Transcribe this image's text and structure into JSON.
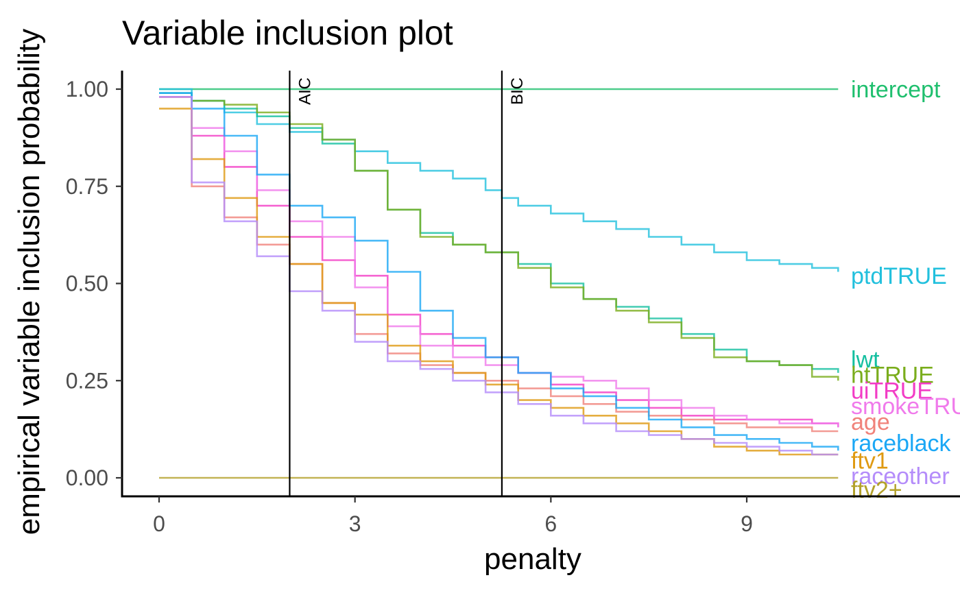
{
  "chart_data": {
    "type": "line",
    "title": "Variable inclusion plot",
    "xlabel": "penalty",
    "ylabel": "empirical variable inclusion probability",
    "xlim": [
      -0.55,
      11.95
    ],
    "ylim": [
      -0.05,
      1.05
    ],
    "x_ticks": [
      0,
      3,
      6,
      9
    ],
    "x_tick_labels": [
      "0",
      "3",
      "6",
      "9"
    ],
    "y_ticks": [
      0,
      0.25,
      0.5,
      0.75,
      1.0
    ],
    "y_tick_labels": [
      "0.00",
      "0.25",
      "0.50",
      "0.75",
      "1.00"
    ],
    "grid": false,
    "legend": "direct labels at right end of lines",
    "vlines": [
      {
        "x": 2.0,
        "label": "AIC"
      },
      {
        "x": 5.25,
        "label": "BIC"
      }
    ],
    "series": [
      {
        "name": "intercept",
        "color": "#1fbf6e",
        "x": [
          0,
          10.4
        ],
        "y": [
          1.0,
          1.0
        ],
        "label_y": 1.0
      },
      {
        "name": "ptdTRUE",
        "color": "#22c0dd",
        "x": [
          0,
          0.5,
          1.0,
          1.5,
          2.0,
          2.5,
          3.0,
          3.5,
          4.0,
          4.5,
          5.0,
          5.25,
          5.5,
          6.0,
          6.5,
          7.0,
          7.5,
          8.0,
          8.5,
          9.0,
          9.5,
          10.0,
          10.4
        ],
        "y": [
          1.0,
          0.97,
          0.94,
          0.91,
          0.89,
          0.87,
          0.84,
          0.81,
          0.79,
          0.77,
          0.74,
          0.72,
          0.7,
          0.68,
          0.66,
          0.64,
          0.62,
          0.6,
          0.58,
          0.56,
          0.55,
          0.54,
          0.53
        ],
        "label_y": 0.52
      },
      {
        "name": "lwt",
        "color": "#14bfa0",
        "x": [
          0,
          0.5,
          1.0,
          1.5,
          2.0,
          2.5,
          3.0,
          3.5,
          4.0,
          4.5,
          5.0,
          5.5,
          6.0,
          6.5,
          7.0,
          7.5,
          8.0,
          8.5,
          9.0,
          9.5,
          10.0,
          10.4
        ],
        "y": [
          0.99,
          0.97,
          0.95,
          0.93,
          0.9,
          0.86,
          0.79,
          0.69,
          0.63,
          0.6,
          0.58,
          0.55,
          0.5,
          0.46,
          0.44,
          0.41,
          0.37,
          0.33,
          0.3,
          0.29,
          0.28,
          0.27
        ],
        "label_y": 0.305
      },
      {
        "name": "htTRUE",
        "color": "#7aad1c",
        "x": [
          0,
          0.5,
          1.0,
          1.5,
          2.0,
          2.5,
          3.0,
          3.5,
          4.0,
          4.5,
          5.0,
          5.5,
          6.0,
          6.5,
          7.0,
          7.5,
          8.0,
          8.5,
          9.0,
          9.5,
          10.0,
          10.4
        ],
        "y": [
          0.98,
          0.97,
          0.96,
          0.94,
          0.91,
          0.87,
          0.79,
          0.69,
          0.62,
          0.6,
          0.58,
          0.54,
          0.49,
          0.46,
          0.43,
          0.4,
          0.36,
          0.31,
          0.3,
          0.29,
          0.26,
          0.25
        ],
        "label_y": 0.265
      },
      {
        "name": "uiTRUE",
        "color": "#f23cc5",
        "x": [
          0,
          0.5,
          1.0,
          1.5,
          2.0,
          2.5,
          3.0,
          3.5,
          4.0,
          4.5,
          5.0,
          5.5,
          6.0,
          6.5,
          7.0,
          7.5,
          8.0,
          8.5,
          9.0,
          9.5,
          10.0,
          10.4
        ],
        "y": [
          0.98,
          0.88,
          0.8,
          0.7,
          0.62,
          0.56,
          0.52,
          0.42,
          0.37,
          0.34,
          0.31,
          0.27,
          0.24,
          0.22,
          0.2,
          0.18,
          0.16,
          0.15,
          0.15,
          0.15,
          0.14,
          0.13
        ],
        "label_y": 0.225
      },
      {
        "name": "smokeTRUE",
        "color": "#f07aeb",
        "x": [
          0,
          0.5,
          1.0,
          1.5,
          2.0,
          2.5,
          3.0,
          3.5,
          4.0,
          4.5,
          5.0,
          5.5,
          6.0,
          6.5,
          7.0,
          7.5,
          8.0,
          8.5,
          9.0,
          9.5,
          10.0,
          10.4
        ],
        "y": [
          0.98,
          0.9,
          0.84,
          0.74,
          0.66,
          0.62,
          0.49,
          0.39,
          0.34,
          0.31,
          0.29,
          0.27,
          0.26,
          0.25,
          0.23,
          0.2,
          0.18,
          0.16,
          0.15,
          0.14,
          0.14,
          0.13
        ],
        "label_y": 0.185
      },
      {
        "name": "age",
        "color": "#f0827a",
        "x": [
          0,
          0.5,
          1.0,
          1.5,
          2.0,
          2.5,
          3.0,
          3.5,
          4.0,
          4.5,
          5.0,
          5.5,
          6.0,
          6.5,
          7.0,
          7.5,
          8.0,
          8.5,
          9.0,
          9.5,
          10.0,
          10.4
        ],
        "y": [
          0.98,
          0.75,
          0.67,
          0.6,
          0.55,
          0.45,
          0.37,
          0.32,
          0.29,
          0.27,
          0.25,
          0.23,
          0.21,
          0.19,
          0.17,
          0.16,
          0.15,
          0.14,
          0.13,
          0.13,
          0.12,
          0.12
        ],
        "label_y": 0.145
      },
      {
        "name": "raceblack",
        "color": "#1aa7f5",
        "x": [
          0,
          0.5,
          1.0,
          1.5,
          2.0,
          2.5,
          3.0,
          3.5,
          4.0,
          4.5,
          5.0,
          5.5,
          6.0,
          6.5,
          7.0,
          7.5,
          8.0,
          8.5,
          9.0,
          9.5,
          10.0,
          10.4
        ],
        "y": [
          0.99,
          0.95,
          0.88,
          0.78,
          0.7,
          0.67,
          0.61,
          0.53,
          0.43,
          0.36,
          0.31,
          0.27,
          0.23,
          0.21,
          0.18,
          0.15,
          0.13,
          0.11,
          0.1,
          0.09,
          0.08,
          0.07
        ],
        "label_y": 0.09
      },
      {
        "name": "ftv1",
        "color": "#df9a12",
        "x": [
          0,
          0.5,
          1.0,
          1.5,
          2.0,
          2.5,
          3.0,
          3.5,
          4.0,
          4.5,
          5.0,
          5.5,
          6.0,
          6.5,
          7.0,
          7.5,
          8.0,
          8.5,
          9.0,
          9.5,
          10.0,
          10.4
        ],
        "y": [
          0.95,
          0.82,
          0.72,
          0.62,
          0.55,
          0.45,
          0.42,
          0.34,
          0.3,
          0.27,
          0.24,
          0.2,
          0.18,
          0.16,
          0.14,
          0.12,
          0.1,
          0.08,
          0.07,
          0.06,
          0.06,
          0.06
        ],
        "label_y": 0.045
      },
      {
        "name": "raceother",
        "color": "#b48cfa",
        "x": [
          0,
          0.5,
          1.0,
          1.5,
          2.0,
          2.5,
          3.0,
          3.5,
          4.0,
          4.5,
          5.0,
          5.5,
          6.0,
          6.5,
          7.0,
          7.5,
          8.0,
          8.5,
          9.0,
          9.5,
          10.0,
          10.4
        ],
        "y": [
          0.98,
          0.76,
          0.66,
          0.57,
          0.48,
          0.43,
          0.35,
          0.3,
          0.28,
          0.25,
          0.22,
          0.19,
          0.16,
          0.14,
          0.12,
          0.11,
          0.1,
          0.09,
          0.08,
          0.07,
          0.06,
          0.06
        ],
        "label_y": 0.005
      },
      {
        "name": "ftv2+",
        "color": "#b3a12a",
        "x": [
          0,
          10.4
        ],
        "y": [
          0.0,
          0.0
        ],
        "label_y": -0.03
      }
    ]
  }
}
